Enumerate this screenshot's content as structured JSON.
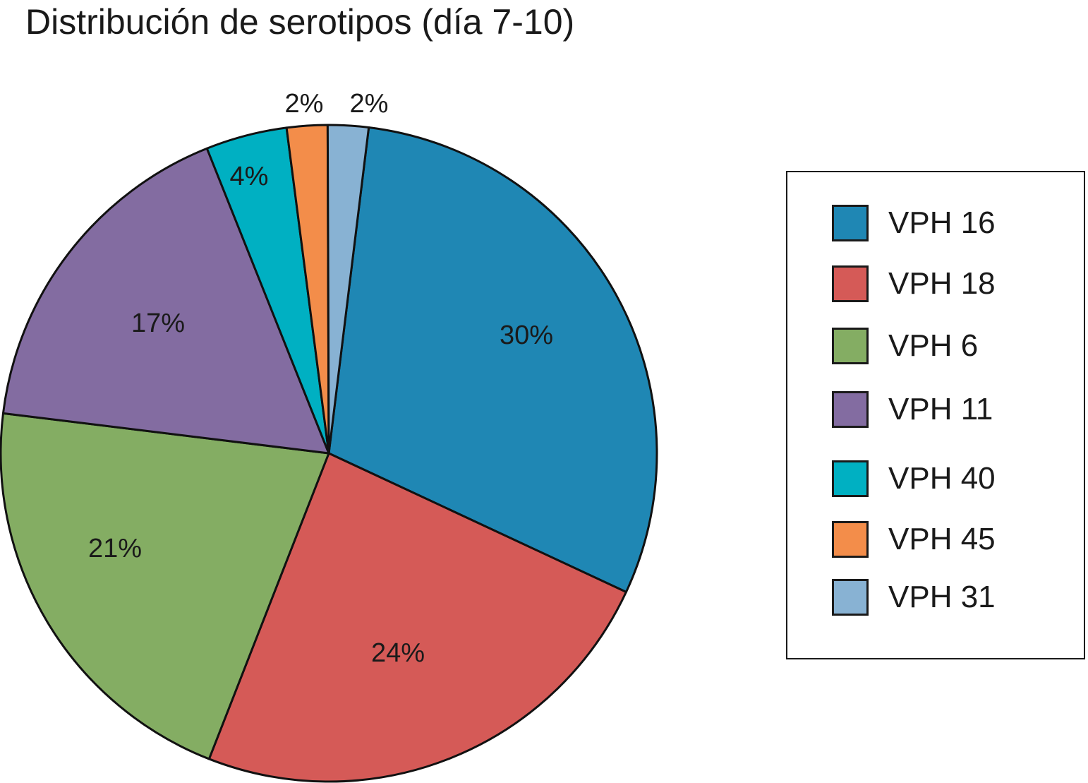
{
  "chart_data": {
    "type": "pie",
    "title": "Distribución de serotipos (día 7-10)",
    "legend_position": "right",
    "slices": [
      {
        "name": "VPH 16",
        "value": 30,
        "label": "30%",
        "color": "#1f87b4"
      },
      {
        "name": "VPH 18",
        "value": 24,
        "label": "24%",
        "color": "#d55a57"
      },
      {
        "name": "VPH 6",
        "value": 21,
        "label": "21%",
        "color": "#84ad63"
      },
      {
        "name": "VPH 11",
        "value": 17,
        "label": "17%",
        "color": "#836ca1"
      },
      {
        "name": "VPH 40",
        "value": 4,
        "label": "4%",
        "color": "#00b0c2"
      },
      {
        "name": "VPH 45",
        "value": 2,
        "label": "2%",
        "color": "#f38d4a"
      },
      {
        "name": "VPH 31",
        "value": 2,
        "label": "2%",
        "color": "#88b2d3"
      }
    ]
  }
}
